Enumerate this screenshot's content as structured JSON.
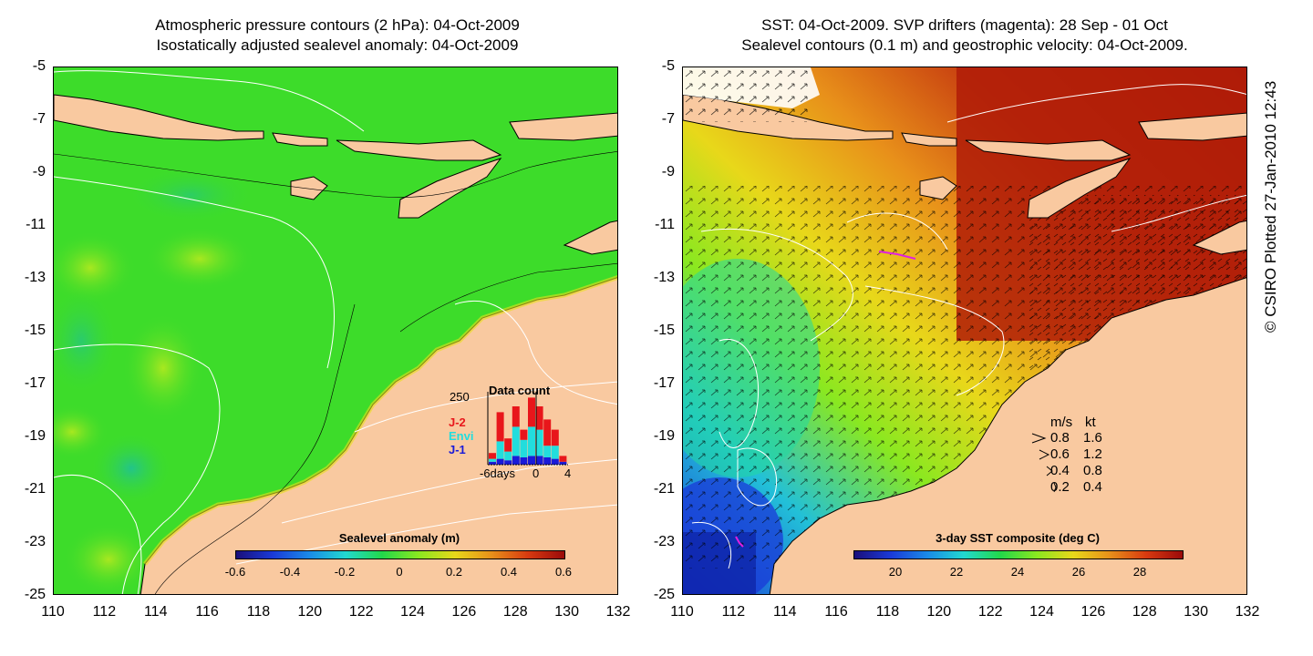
{
  "left_panel": {
    "title_line1": "Atmospheric pressure contours (2 hPa): 04-Oct-2009",
    "title_line2": "Isostatically adjusted sealevel anomaly: 04-Oct-2009",
    "colorbar": {
      "title": "Sealevel anomaly (m)",
      "labels": [
        "-0.6",
        "-0.4",
        "-0.2",
        "0",
        "0.2",
        "0.4",
        "0.6"
      ]
    },
    "inset": {
      "title": "Data count",
      "ymax_label": "250",
      "series_labels": [
        "J-2",
        "Envi",
        "J-1"
      ],
      "series_colors": [
        "#e8161b",
        "#22dddd",
        "#1a1ad8"
      ],
      "x_labels": [
        "-6days",
        "0",
        "4"
      ],
      "bars": [
        {
          "j1": 10,
          "envi": 10,
          "j2": 20
        },
        {
          "j1": 20,
          "envi": 60,
          "j2": 100
        },
        {
          "j1": 15,
          "envi": 30,
          "j2": 45
        },
        {
          "j1": 30,
          "envi": 100,
          "j2": 70
        },
        {
          "j1": 25,
          "envi": 60,
          "j2": 35
        },
        {
          "j1": 30,
          "envi": 100,
          "j2": 100
        },
        {
          "j1": 30,
          "envi": 90,
          "j2": 80
        },
        {
          "j1": 25,
          "envi": 40,
          "j2": 90
        },
        {
          "j1": 20,
          "envi": 45,
          "j2": 55
        },
        {
          "j1": 10,
          "envi": 0,
          "j2": 20
        }
      ]
    }
  },
  "right_panel": {
    "title_line1": "SST: 04-Oct-2009. SVP drifters (magenta): 28 Sep - 01 Oct",
    "title_line2": "Sealevel contours (0.1 m) and geostrophic velocity: 04-Oct-2009.",
    "colorbar": {
      "title": "3-day SST composite (deg C)",
      "labels": [
        "20",
        "22",
        "24",
        "26",
        "28"
      ]
    },
    "velocity_legend": {
      "header_ms": "m/s",
      "header_kt": "kt",
      "rows": [
        {
          "ms": "0.8",
          "kt": "1.6"
        },
        {
          "ms": "0.6",
          "kt": "1.2"
        },
        {
          "ms": "0.4",
          "kt": "0.8"
        },
        {
          "ms": "0.2",
          "kt": "0.4"
        }
      ]
    }
  },
  "axes": {
    "y_labels": [
      "-5",
      "-7",
      "-9",
      "-11",
      "-13",
      "-15",
      "-17",
      "-19",
      "-21",
      "-23",
      "-25"
    ],
    "x_labels": [
      "110",
      "112",
      "114",
      "116",
      "118",
      "120",
      "122",
      "124",
      "126",
      "128",
      "130",
      "132"
    ]
  },
  "copyright": "© CSIRO Plotted 27-Jan-2010 12:43",
  "colors": {
    "land": "#f9c9a0",
    "ocean_green": "#3ddc2a",
    "sst_hot": "#b01c08",
    "sst_cool": "#1a5ad8"
  }
}
